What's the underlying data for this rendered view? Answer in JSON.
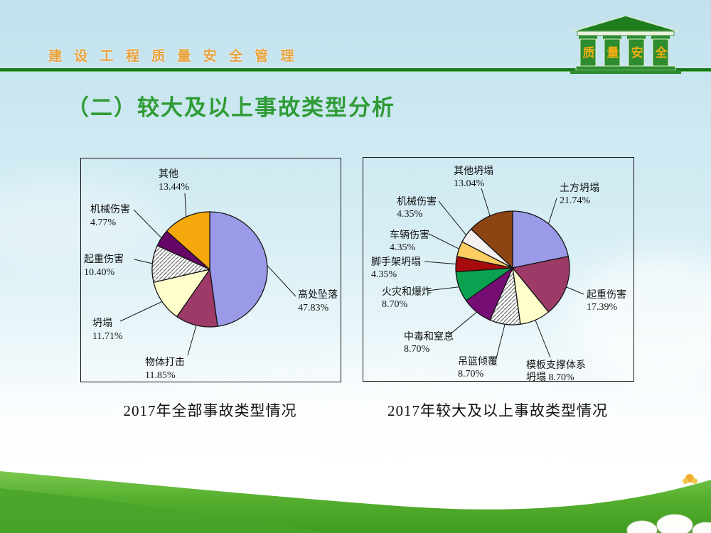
{
  "header": {
    "brand": "建 设 工 程 质 量 安 全 管 理",
    "logo": {
      "chars": [
        "质",
        "量",
        "安",
        "全"
      ]
    }
  },
  "title": "（二）较大及以上事故类型分析",
  "chart_data": [
    {
      "type": "pie",
      "caption": "2017年全部事故类型情况",
      "start_angle": "12-oclock",
      "direction": "clockwise",
      "slices": [
        {
          "label": "高处坠落",
          "value": 47.83,
          "pct": "47.83%",
          "color": "#9a9ae8"
        },
        {
          "label": "物体打击",
          "value": 11.85,
          "pct": "11.85%",
          "color": "#9d3a68"
        },
        {
          "label": "坍塌",
          "value": 11.71,
          "pct": "11.71%",
          "color": "#ffffcc"
        },
        {
          "label": "起重伤害",
          "value": 10.4,
          "pct": "10.40%",
          "color": "hatch"
        },
        {
          "label": "机械伤害",
          "value": 4.77,
          "pct": "4.77%",
          "color": "#660666"
        },
        {
          "label": "其他",
          "value": 13.44,
          "pct": "13.44%",
          "color": "#f5a80c"
        }
      ]
    },
    {
      "type": "pie",
      "caption": "2017年较大及以上事故类型情况",
      "start_angle": "12-oclock",
      "direction": "clockwise",
      "slices": [
        {
          "label": "土方坍塌",
          "value": 21.74,
          "pct": "21.74%",
          "color": "#9a9ae8"
        },
        {
          "label": "起重伤害",
          "value": 17.39,
          "pct": "17.39%",
          "color": "#9d3a68"
        },
        {
          "label": "模板支撑体系坍塌",
          "value": 8.7,
          "pct": "8.70%",
          "color": "#ffffcc",
          "label_lines": [
            "模板支撑体系",
            "坍塌  8.70%"
          ]
        },
        {
          "label": "吊篮倾覆",
          "value": 8.7,
          "pct": "8.70%",
          "color": "hatch"
        },
        {
          "label": "中毒和窒息",
          "value": 8.7,
          "pct": "8.70%",
          "color": "#750d75"
        },
        {
          "label": "火灾和爆炸",
          "value": 8.7,
          "pct": "8.70%",
          "color": "#0aa150"
        },
        {
          "label": "脚手架坍塌",
          "value": 4.35,
          "pct": "4.35%",
          "color": "#a80b0b"
        },
        {
          "label": "车辆伤害",
          "value": 4.35,
          "pct": "4.35%",
          "color": "#fbcd63"
        },
        {
          "label": "机械伤害",
          "value": 4.35,
          "pct": "4.35%",
          "color": "#f4f0ef"
        },
        {
          "label": "其他坍塌",
          "value": 13.04,
          "pct": "13.04%",
          "color": "#8c4412"
        }
      ]
    }
  ],
  "colors": {
    "header_text": "#e8a23c",
    "title_green": "#2f9b35",
    "divider_green": "#157a15",
    "logo_green": "#2d8c2d",
    "logo_gold": "#f0ae12",
    "pie_outline": "#141414"
  }
}
